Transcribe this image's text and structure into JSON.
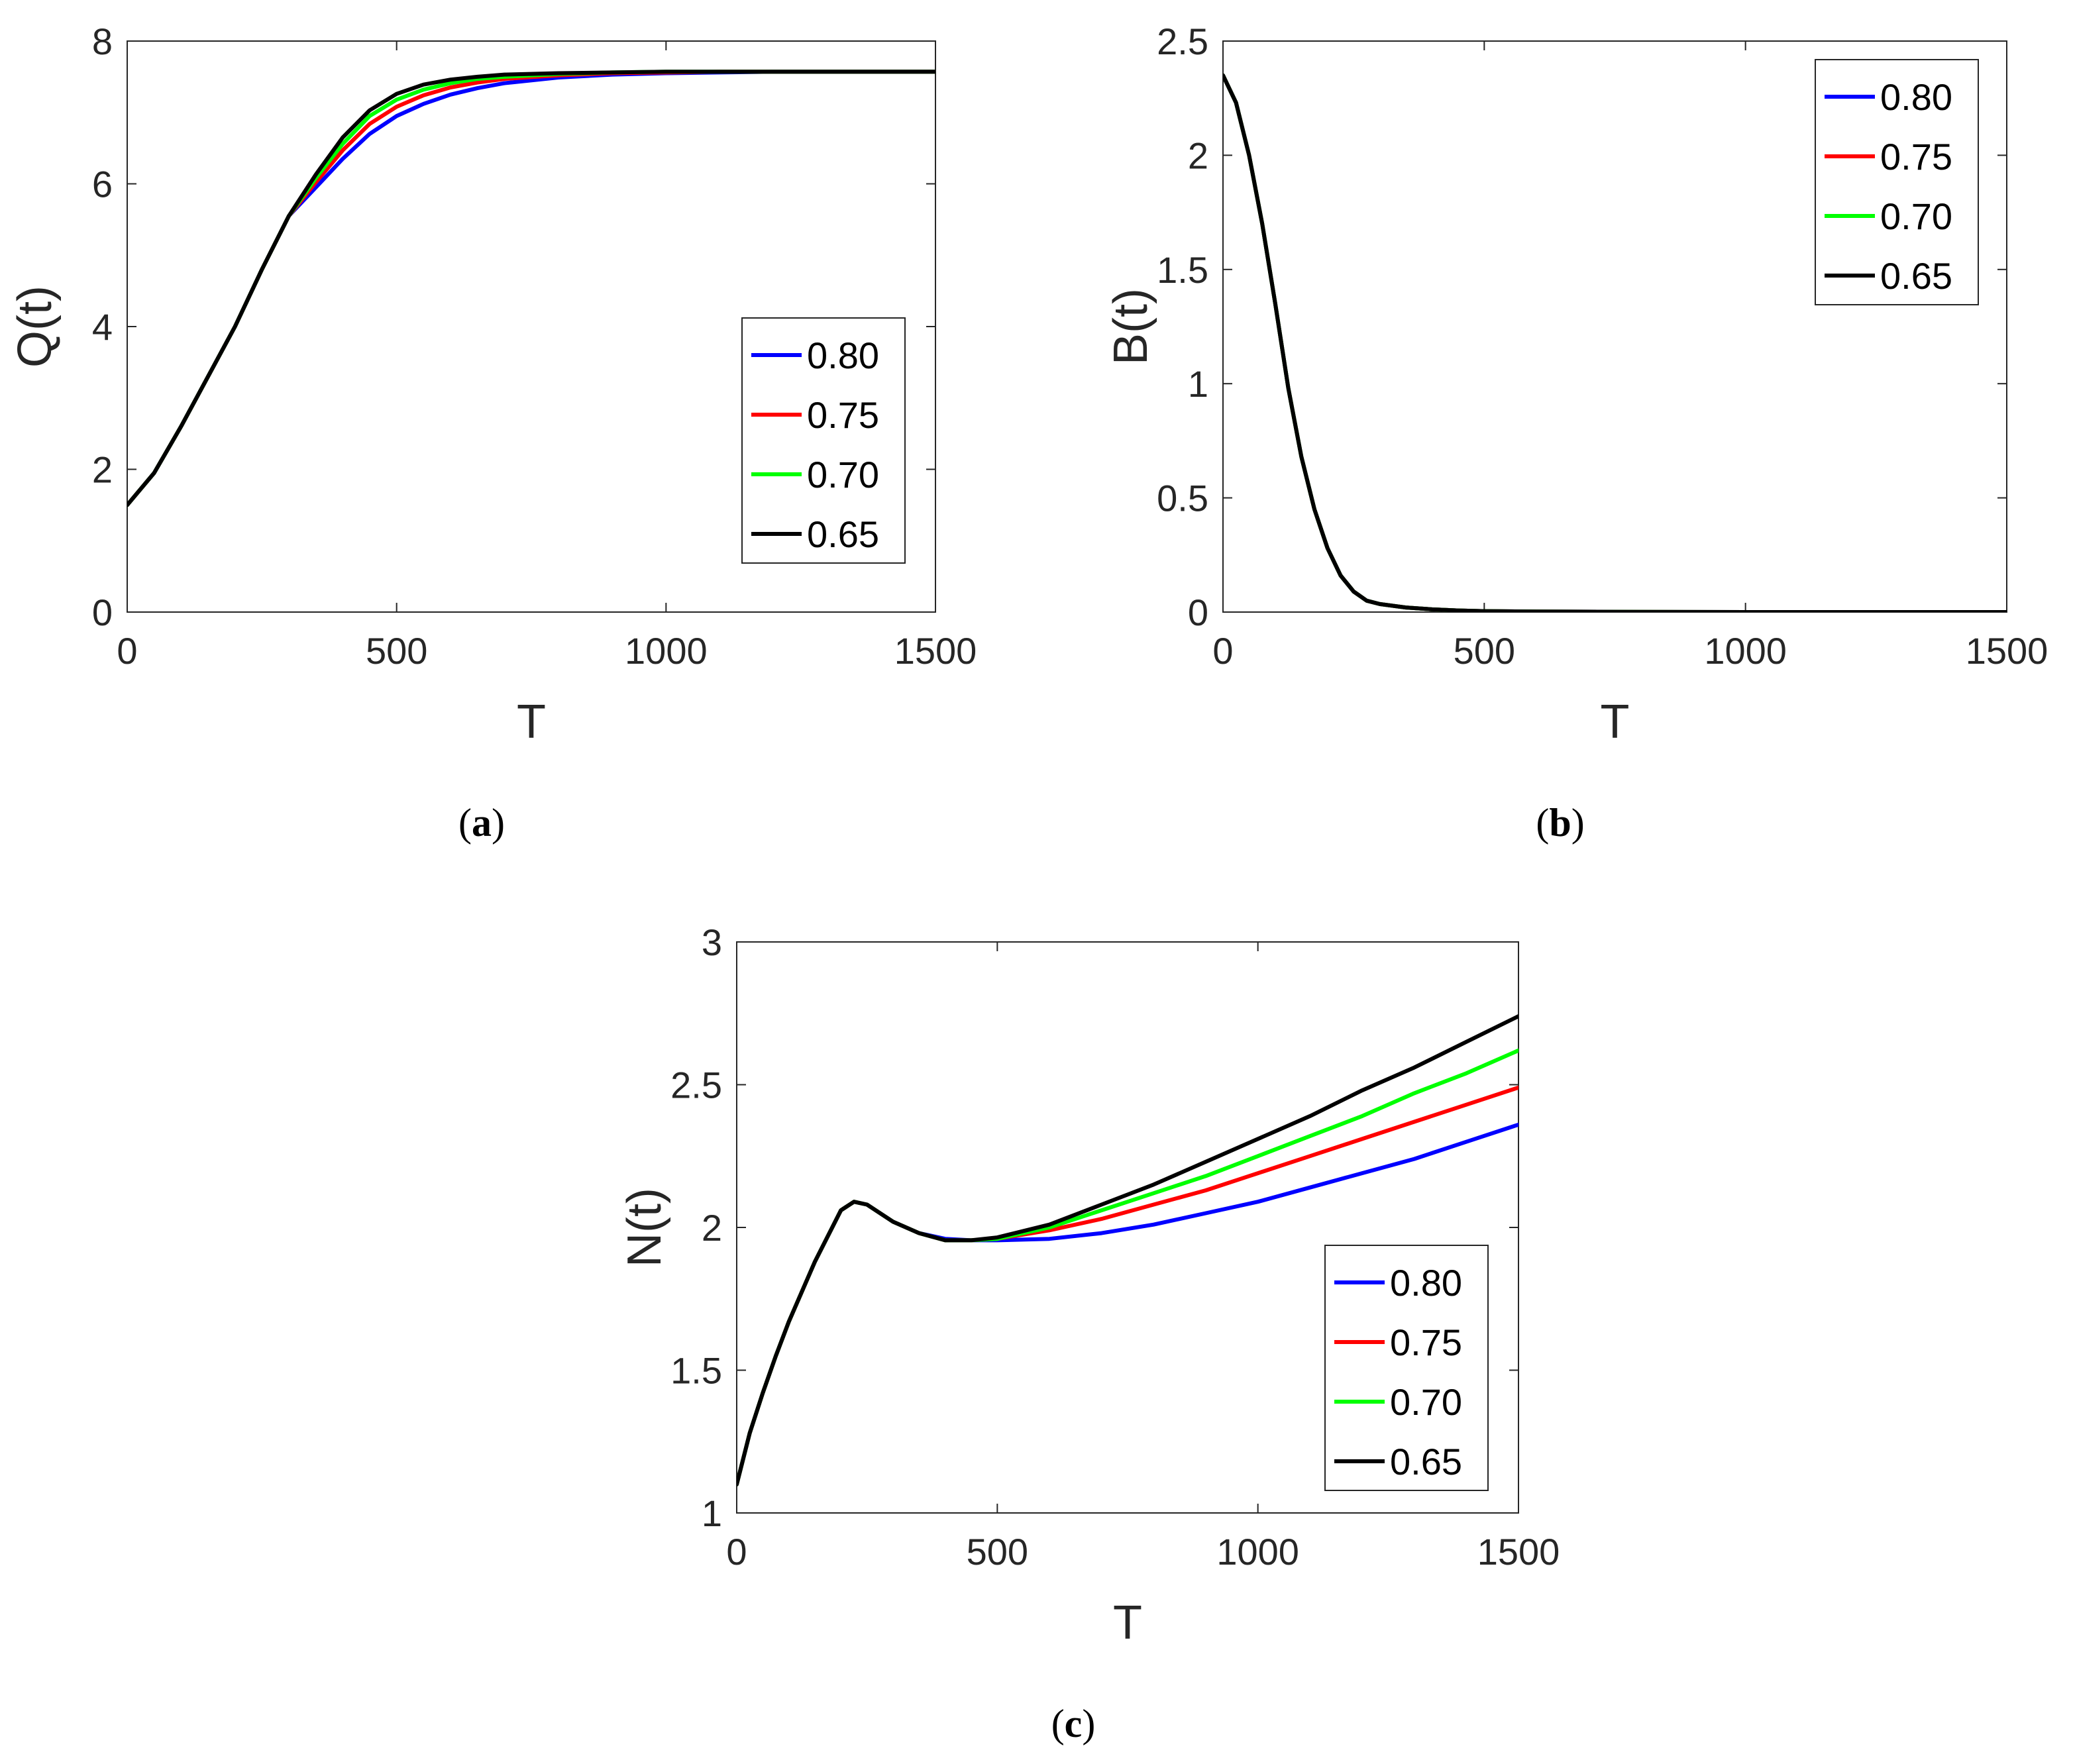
{
  "chart_data": [
    {
      "type": "line",
      "caption_open": "(",
      "caption_letter": "a",
      "caption_close": ")",
      "xlabel": "T",
      "ylabel": "Q(t)",
      "xlim": [
        0,
        1500
      ],
      "ylim": [
        0,
        8
      ],
      "xticks": [
        0,
        500,
        1000,
        1500
      ],
      "xtick_labels": [
        "0",
        "500",
        "1000",
        "1500"
      ],
      "yticks": [
        0,
        2,
        4,
        6,
        8
      ],
      "ytick_labels": [
        "0",
        "2",
        "4",
        "6",
        "8"
      ],
      "legend_position": "lower-right",
      "series": [
        {
          "name": "0.80",
          "color": "#0000ff",
          "x": [
            0,
            50,
            100,
            150,
            200,
            250,
            300,
            350,
            400,
            450,
            500,
            550,
            600,
            650,
            700,
            800,
            900,
            1000,
            1100,
            1200,
            1300,
            1400,
            1500
          ],
          "y": [
            1.5,
            1.95,
            2.6,
            3.3,
            4.0,
            4.8,
            5.55,
            5.95,
            6.35,
            6.7,
            6.95,
            7.12,
            7.25,
            7.34,
            7.41,
            7.49,
            7.53,
            7.55,
            7.56,
            7.57,
            7.57,
            7.57,
            7.57
          ]
        },
        {
          "name": "0.75",
          "color": "#ff0000",
          "x": [
            0,
            50,
            100,
            150,
            200,
            250,
            300,
            350,
            400,
            450,
            500,
            550,
            600,
            650,
            700,
            800,
            900,
            1000,
            1100,
            1200,
            1300,
            1400,
            1500
          ],
          "y": [
            1.5,
            1.95,
            2.6,
            3.3,
            4.0,
            4.8,
            5.55,
            6.02,
            6.47,
            6.84,
            7.08,
            7.24,
            7.35,
            7.42,
            7.47,
            7.52,
            7.55,
            7.56,
            7.57,
            7.57,
            7.57,
            7.57,
            7.57
          ]
        },
        {
          "name": "0.70",
          "color": "#00ff00",
          "x": [
            0,
            50,
            100,
            150,
            200,
            250,
            300,
            350,
            400,
            450,
            500,
            550,
            600,
            650,
            700,
            800,
            900,
            1000,
            1100,
            1200,
            1300,
            1400,
            1500
          ],
          "y": [
            1.5,
            1.95,
            2.6,
            3.3,
            4.0,
            4.8,
            5.55,
            6.08,
            6.56,
            6.95,
            7.18,
            7.32,
            7.41,
            7.47,
            7.5,
            7.54,
            7.56,
            7.57,
            7.57,
            7.57,
            7.57,
            7.57,
            7.57
          ]
        },
        {
          "name": "0.65",
          "color": "#000000",
          "x": [
            0,
            50,
            100,
            150,
            200,
            250,
            300,
            350,
            400,
            450,
            500,
            550,
            600,
            650,
            700,
            800,
            900,
            1000,
            1100,
            1200,
            1300,
            1400,
            1500
          ],
          "y": [
            1.5,
            1.95,
            2.6,
            3.3,
            4.0,
            4.8,
            5.55,
            6.13,
            6.65,
            7.03,
            7.26,
            7.39,
            7.46,
            7.5,
            7.53,
            7.55,
            7.56,
            7.57,
            7.57,
            7.57,
            7.57,
            7.57,
            7.57
          ]
        }
      ]
    },
    {
      "type": "line",
      "caption_open": "(",
      "caption_letter": "b",
      "caption_close": ")",
      "xlabel": "T",
      "ylabel": "B(t)",
      "xlim": [
        0,
        1500
      ],
      "ylim": [
        0,
        2.5
      ],
      "xticks": [
        0,
        500,
        1000,
        1500
      ],
      "xtick_labels": [
        "0",
        "500",
        "1000",
        "1500"
      ],
      "yticks": [
        0,
        0.5,
        1,
        1.5,
        2,
        2.5
      ],
      "ytick_labels": [
        "0",
        "0.5",
        "1",
        "1.5",
        "2",
        "2.5"
      ],
      "legend_position": "top-right",
      "series": [
        {
          "name": "0.80",
          "color": "#0000ff",
          "x": [
            0,
            25,
            50,
            75,
            100,
            125,
            150,
            175,
            200,
            225,
            250,
            275,
            300,
            350,
            400,
            450,
            500,
            600,
            800,
            1000,
            1500
          ],
          "y": [
            2.35,
            2.23,
            2.0,
            1.7,
            1.35,
            0.98,
            0.68,
            0.45,
            0.28,
            0.16,
            0.09,
            0.05,
            0.035,
            0.02,
            0.012,
            0.007,
            0.004,
            0.002,
            0.001,
            0.0,
            0.0
          ]
        },
        {
          "name": "0.75",
          "color": "#ff0000",
          "x": [
            0,
            25,
            50,
            75,
            100,
            125,
            150,
            175,
            200,
            225,
            250,
            275,
            300,
            350,
            400,
            450,
            500,
            600,
            800,
            1000,
            1500
          ],
          "y": [
            2.35,
            2.23,
            2.0,
            1.7,
            1.35,
            0.98,
            0.68,
            0.45,
            0.28,
            0.16,
            0.09,
            0.05,
            0.035,
            0.02,
            0.012,
            0.007,
            0.004,
            0.002,
            0.001,
            0.0,
            0.0
          ]
        },
        {
          "name": "0.70",
          "color": "#00ff00",
          "x": [
            0,
            25,
            50,
            75,
            100,
            125,
            150,
            175,
            200,
            225,
            250,
            275,
            300,
            350,
            400,
            450,
            500,
            600,
            800,
            1000,
            1500
          ],
          "y": [
            2.35,
            2.23,
            2.0,
            1.7,
            1.35,
            0.98,
            0.68,
            0.45,
            0.28,
            0.16,
            0.09,
            0.05,
            0.035,
            0.02,
            0.012,
            0.007,
            0.004,
            0.002,
            0.001,
            0.0,
            0.0
          ]
        },
        {
          "name": "0.65",
          "color": "#000000",
          "x": [
            0,
            25,
            50,
            75,
            100,
            125,
            150,
            175,
            200,
            225,
            250,
            275,
            300,
            350,
            400,
            450,
            500,
            600,
            800,
            1000,
            1500
          ],
          "y": [
            2.35,
            2.23,
            2.0,
            1.7,
            1.35,
            0.98,
            0.68,
            0.45,
            0.28,
            0.16,
            0.09,
            0.05,
            0.035,
            0.02,
            0.012,
            0.007,
            0.004,
            0.002,
            0.001,
            0.0,
            0.0
          ]
        }
      ]
    },
    {
      "type": "line",
      "caption_open": "(",
      "caption_letter": "c",
      "caption_close": ")",
      "xlabel": "T",
      "ylabel": "N(t)",
      "xlim": [
        0,
        1500
      ],
      "ylim": [
        1,
        3
      ],
      "xticks": [
        0,
        500,
        1000,
        1500
      ],
      "xtick_labels": [
        "0",
        "500",
        "1000",
        "1500"
      ],
      "yticks": [
        1,
        1.5,
        2,
        2.5,
        3
      ],
      "ytick_labels": [
        "1",
        "1.5",
        "2",
        "2.5",
        "3"
      ],
      "legend_position": "lower-right",
      "series": [
        {
          "name": "0.80",
          "color": "#0000ff",
          "x": [
            0,
            25,
            50,
            75,
            100,
            150,
            200,
            225,
            250,
            300,
            350,
            400,
            450,
            500,
            600,
            700,
            800,
            900,
            1000,
            1100,
            1200,
            1300,
            1400,
            1500
          ],
          "y": [
            1.1,
            1.28,
            1.42,
            1.55,
            1.67,
            1.88,
            2.06,
            2.09,
            2.08,
            2.02,
            1.98,
            1.96,
            1.955,
            1.955,
            1.96,
            1.98,
            2.01,
            2.05,
            2.09,
            2.14,
            2.19,
            2.24,
            2.3,
            2.36
          ]
        },
        {
          "name": "0.75",
          "color": "#ff0000",
          "x": [
            0,
            25,
            50,
            75,
            100,
            150,
            200,
            225,
            250,
            300,
            350,
            400,
            450,
            500,
            600,
            700,
            800,
            900,
            1000,
            1100,
            1200,
            1300,
            1400,
            1500
          ],
          "y": [
            1.1,
            1.28,
            1.42,
            1.55,
            1.67,
            1.88,
            2.06,
            2.09,
            2.08,
            2.02,
            1.98,
            1.955,
            1.955,
            1.96,
            1.99,
            2.03,
            2.08,
            2.13,
            2.19,
            2.25,
            2.31,
            2.37,
            2.43,
            2.49
          ]
        },
        {
          "name": "0.70",
          "color": "#00ff00",
          "x": [
            0,
            25,
            50,
            75,
            100,
            150,
            200,
            225,
            250,
            300,
            350,
            400,
            450,
            500,
            600,
            700,
            800,
            900,
            1000,
            1100,
            1200,
            1300,
            1400,
            1500
          ],
          "y": [
            1.1,
            1.28,
            1.42,
            1.55,
            1.67,
            1.88,
            2.06,
            2.09,
            2.08,
            2.02,
            1.98,
            1.955,
            1.955,
            1.96,
            2.0,
            2.06,
            2.12,
            2.18,
            2.25,
            2.32,
            2.39,
            2.47,
            2.54,
            2.62
          ]
        },
        {
          "name": "0.65",
          "color": "#000000",
          "x": [
            0,
            25,
            50,
            75,
            100,
            150,
            200,
            225,
            250,
            300,
            350,
            400,
            450,
            500,
            600,
            700,
            800,
            900,
            1000,
            1100,
            1200,
            1300,
            1400,
            1500
          ],
          "y": [
            1.1,
            1.28,
            1.42,
            1.55,
            1.67,
            1.88,
            2.06,
            2.09,
            2.08,
            2.02,
            1.98,
            1.955,
            1.955,
            1.965,
            2.01,
            2.08,
            2.15,
            2.23,
            2.31,
            2.39,
            2.48,
            2.56,
            2.65,
            2.74
          ]
        }
      ]
    }
  ]
}
